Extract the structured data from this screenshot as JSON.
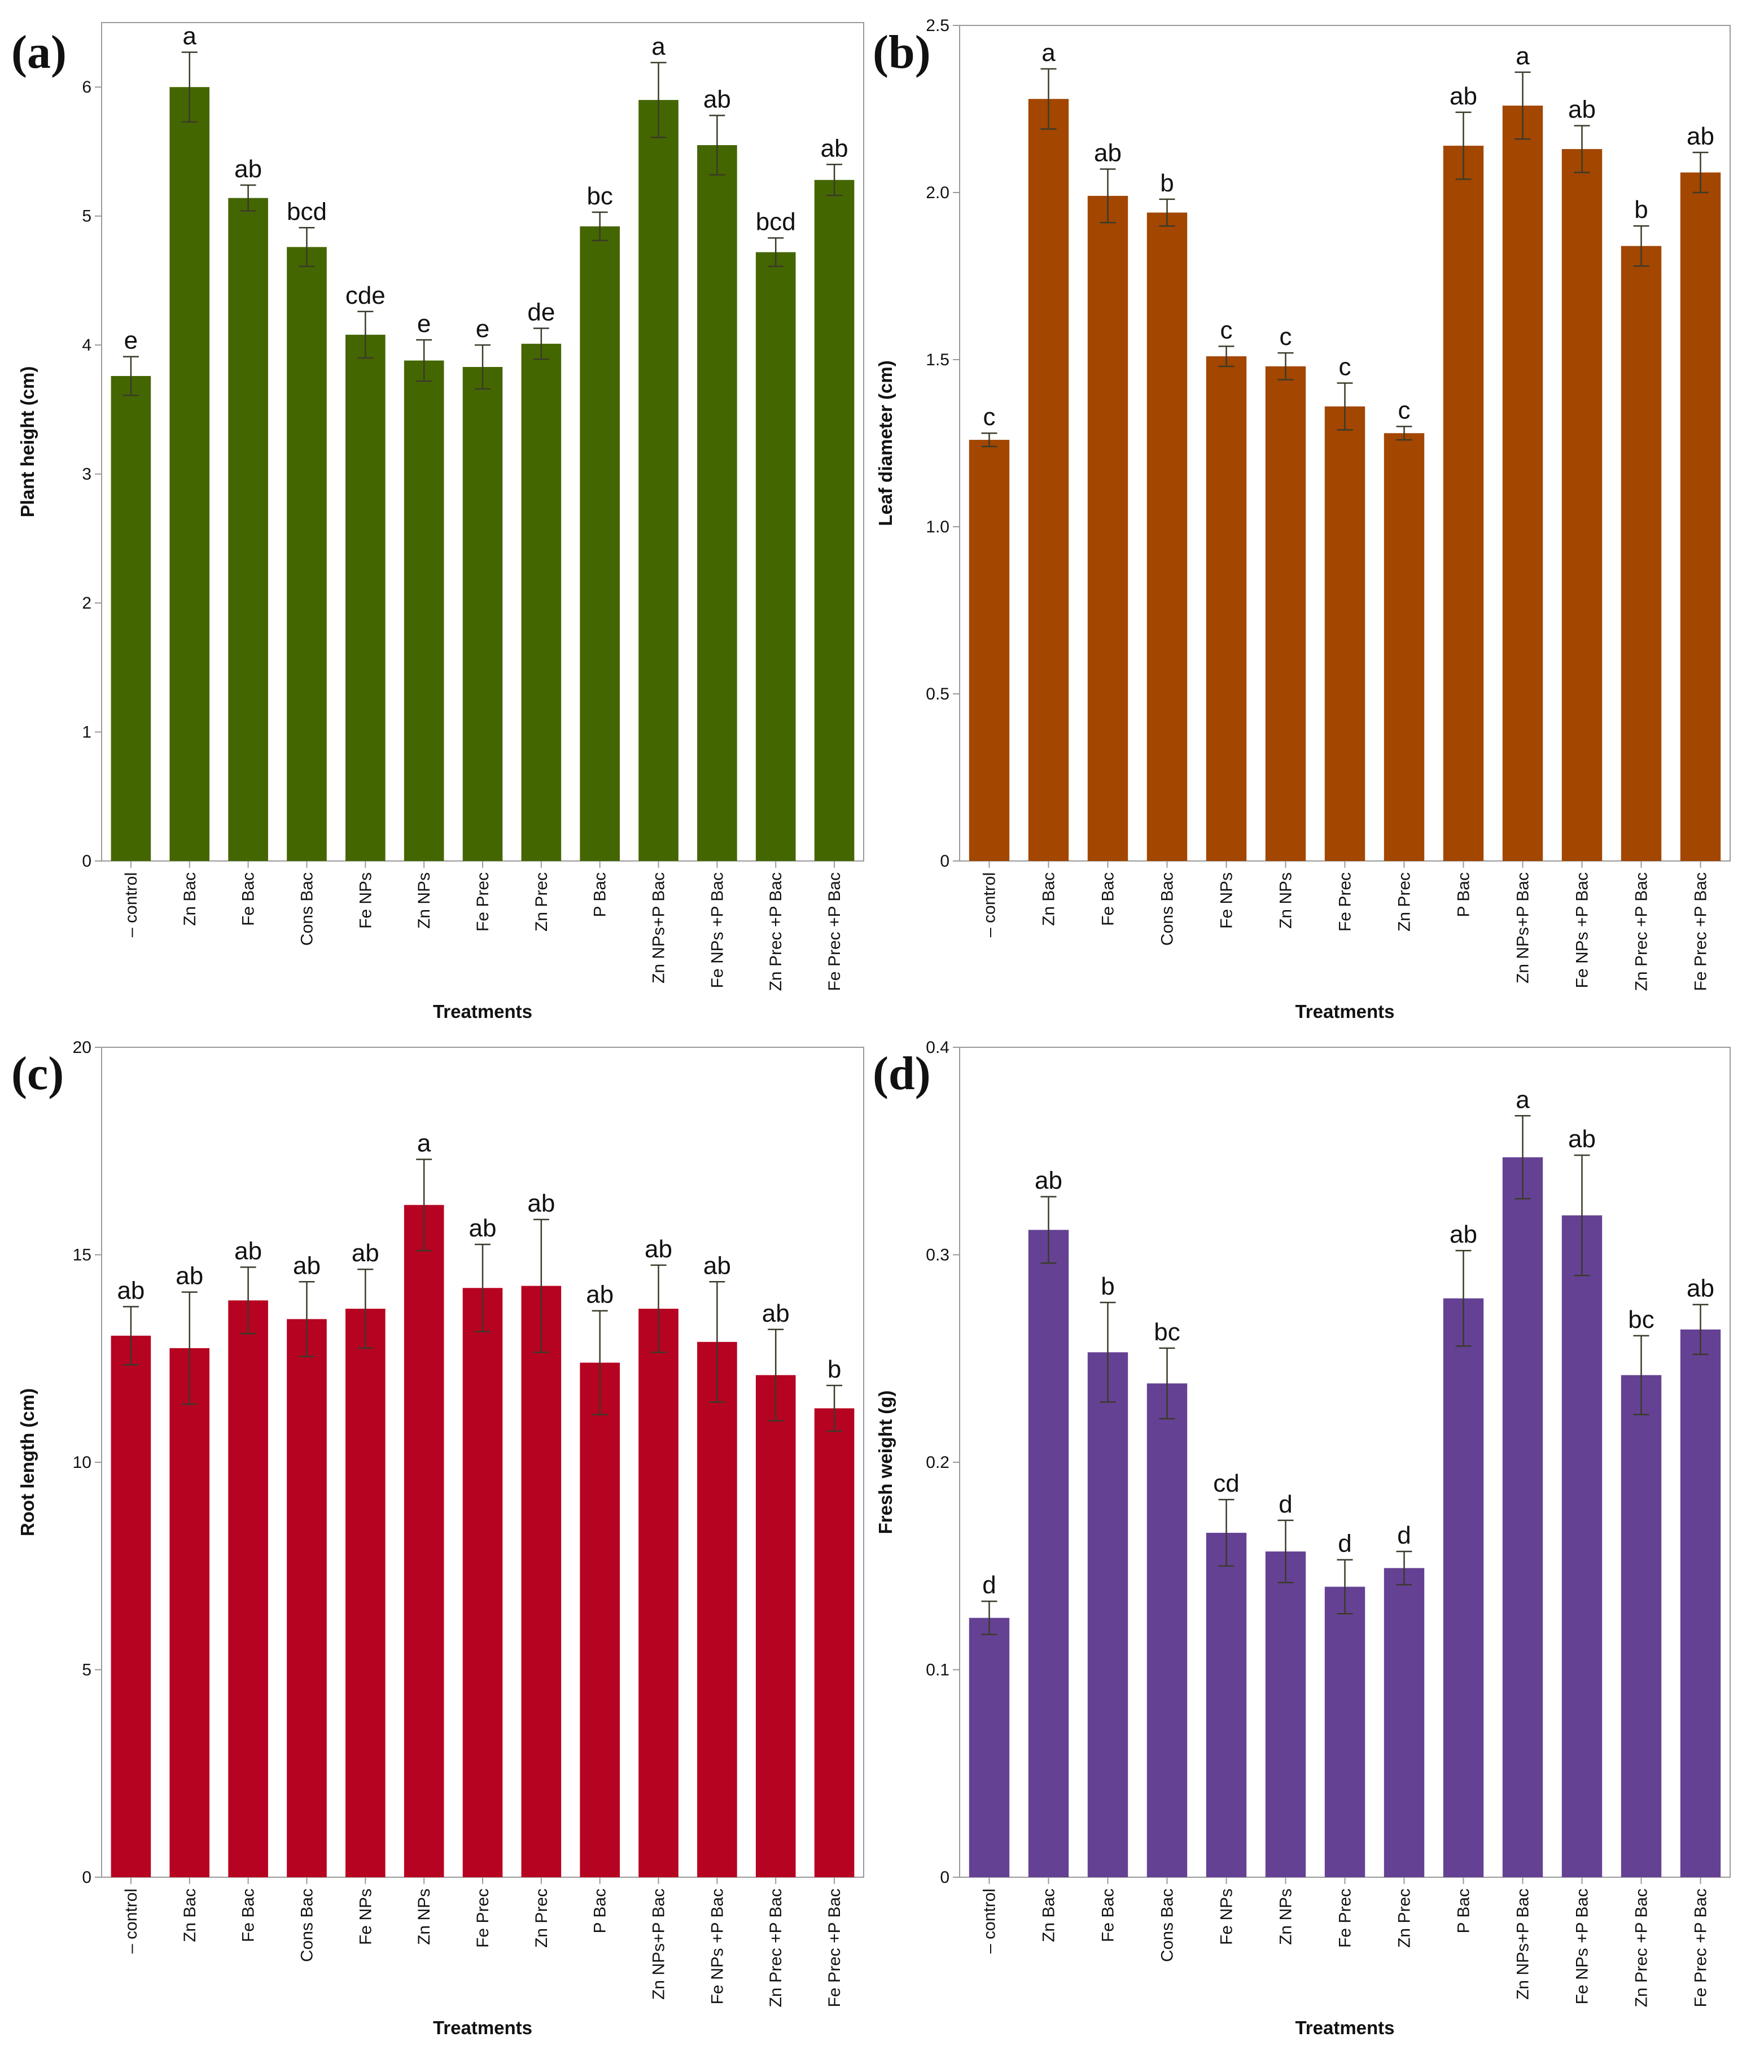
{
  "chart_data": [
    {
      "panel_label": "(a)",
      "type": "bar",
      "color": "#446600",
      "ylabel": "Plant height (cm)",
      "xlabel": "Treatments",
      "ylim": [
        0,
        6.5
      ],
      "yticks": [
        0,
        1,
        2,
        3,
        4,
        5,
        6
      ],
      "ytick_labels": [
        "0",
        "1",
        "2",
        "3",
        "4",
        "5",
        "6"
      ],
      "categories": [
        "– control",
        "Zn Bac",
        "Fe Bac",
        "Cons Bac",
        "Fe NPs",
        "Zn NPs",
        "Fe Prec",
        "Zn Prec",
        "P Bac",
        "Zn NPs+P Bac",
        "Fe NPs +P Bac",
        "Zn Prec +P Bac",
        "Fe Prec +P Bac"
      ],
      "values": [
        3.76,
        6.0,
        5.14,
        4.76,
        4.08,
        3.88,
        3.83,
        4.01,
        4.92,
        5.9,
        5.55,
        4.72,
        5.28
      ],
      "errors": [
        0.15,
        0.27,
        0.1,
        0.15,
        0.18,
        0.16,
        0.17,
        0.12,
        0.11,
        0.29,
        0.23,
        0.11,
        0.12
      ],
      "significance": [
        "e",
        "a",
        "ab",
        "bcd",
        "cde",
        "e",
        "e",
        "de",
        "bc",
        "a",
        "ab",
        "bcd",
        "ab"
      ]
    },
    {
      "panel_label": "(b)",
      "type": "bar",
      "color": "#a24600",
      "ylabel": "Leaf diameter (cm)",
      "xlabel": "Treatments",
      "ylim": [
        0,
        2.5
      ],
      "yticks": [
        0,
        0.5,
        1.0,
        1.5,
        2.0,
        2.5
      ],
      "ytick_labels": [
        "0",
        "0.5",
        "1.0",
        "1.5",
        "2.0",
        "2.5"
      ],
      "categories": [
        "– control",
        "Zn Bac",
        "Fe Bac",
        "Cons Bac",
        "Fe NPs",
        "Zn NPs",
        "Fe Prec",
        "Zn Prec",
        "P Bac",
        "Zn NPs+P Bac",
        "Fe NPs +P Bac",
        "Zn Prec +P Bac",
        "Fe Prec +P Bac"
      ],
      "values": [
        1.26,
        2.28,
        1.99,
        1.94,
        1.51,
        1.48,
        1.36,
        1.28,
        2.14,
        2.26,
        2.13,
        1.84,
        2.06
      ],
      "errors": [
        0.02,
        0.09,
        0.08,
        0.04,
        0.03,
        0.04,
        0.07,
        0.02,
        0.1,
        0.1,
        0.07,
        0.06,
        0.06
      ],
      "significance": [
        "c",
        "a",
        "ab",
        "b",
        "c",
        "c",
        "c",
        "c",
        "ab",
        "a",
        "ab",
        "b",
        "ab"
      ]
    },
    {
      "panel_label": "(c)",
      "type": "bar",
      "color": "#b60321",
      "ylabel": "Root length (cm)",
      "xlabel": "Treatments",
      "ylim": [
        0,
        20
      ],
      "yticks": [
        0,
        5,
        10,
        15,
        20
      ],
      "ytick_labels": [
        "0",
        "5",
        "10",
        "15",
        "20"
      ],
      "categories": [
        "– control",
        "Zn Bac",
        "Fe Bac",
        "Cons Bac",
        "Fe NPs",
        "Zn NPs",
        "Fe Prec",
        "Zn Prec",
        "P Bac",
        "Zn NPs+P Bac",
        "Fe NPs +P Bac",
        "Zn Prec +P Bac",
        "Fe Prec +P Bac"
      ],
      "values": [
        13.05,
        12.75,
        13.9,
        13.45,
        13.7,
        16.2,
        14.2,
        14.25,
        12.4,
        13.7,
        12.9,
        12.1,
        11.3
      ],
      "errors": [
        0.7,
        1.35,
        0.8,
        0.9,
        0.95,
        1.1,
        1.05,
        1.6,
        1.25,
        1.05,
        1.45,
        1.1,
        0.55
      ],
      "significance": [
        "ab",
        "ab",
        "ab",
        "ab",
        "ab",
        "a",
        "ab",
        "ab",
        "ab",
        "ab",
        "ab",
        "ab",
        "b"
      ]
    },
    {
      "panel_label": "(d)",
      "type": "bar",
      "color": "#654194",
      "ylabel": "Fresh weight (g)",
      "xlabel": "Treatments",
      "ylim": [
        0,
        0.4
      ],
      "yticks": [
        0,
        0.1,
        0.2,
        0.3,
        0.4
      ],
      "ytick_labels": [
        "0",
        "0.1",
        "0.2",
        "0.3",
        "0.4"
      ],
      "categories": [
        "– control",
        "Zn Bac",
        "Fe Bac",
        "Cons Bac",
        "Fe NPs",
        "Zn NPs",
        "Fe Prec",
        "Zn Prec",
        "P Bac",
        "Zn NPs+P Bac",
        "Fe NPs +P Bac",
        "Zn Prec +P Bac",
        "Fe Prec +P Bac"
      ],
      "values": [
        0.125,
        0.312,
        0.253,
        0.238,
        0.166,
        0.157,
        0.14,
        0.149,
        0.279,
        0.347,
        0.319,
        0.242,
        0.264
      ],
      "errors": [
        0.008,
        0.016,
        0.024,
        0.017,
        0.016,
        0.015,
        0.013,
        0.008,
        0.023,
        0.02,
        0.029,
        0.019,
        0.012
      ],
      "significance": [
        "d",
        "ab",
        "b",
        "bc",
        "cd",
        "d",
        "d",
        "d",
        "ab",
        "a",
        "ab",
        "bc",
        "ab"
      ]
    }
  ]
}
